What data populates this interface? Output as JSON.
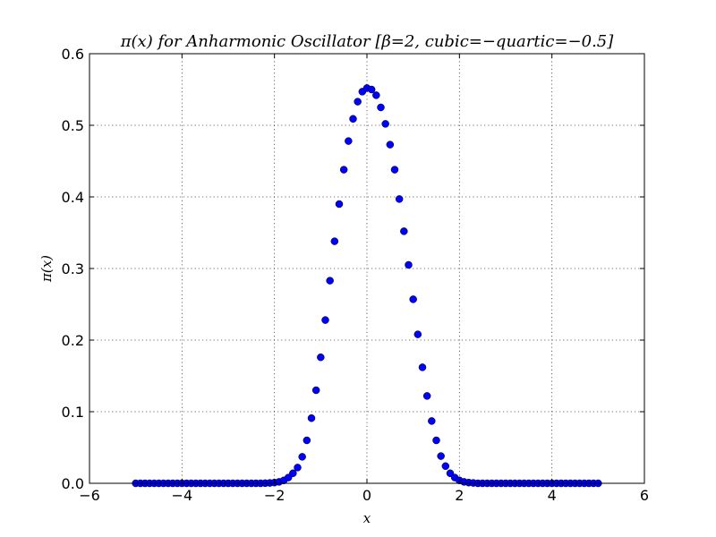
{
  "chart_data": {
    "type": "scatter",
    "title": "π(x) for Anharmonic Oscillator [β=2, cubic=−quartic=−0.5]",
    "xlabel": "x",
    "ylabel": "π(x)",
    "xlim": [
      -6,
      6
    ],
    "ylim": [
      0,
      0.6
    ],
    "xticks": [
      -6,
      -4,
      -2,
      0,
      2,
      4,
      6
    ],
    "xtick_labels": [
      "−6",
      "−4",
      "−2",
      "0",
      "2",
      "4",
      "6"
    ],
    "yticks": [
      0.0,
      0.1,
      0.2,
      0.3,
      0.4,
      0.5,
      0.6
    ],
    "ytick_labels": [
      "0.0",
      "0.1",
      "0.2",
      "0.3",
      "0.4",
      "0.5",
      "0.6"
    ],
    "grid": true,
    "marker_color": "#0000ff",
    "series": [
      {
        "x": [
          -5.0,
          -4.9,
          -4.8,
          -4.7,
          -4.6,
          -4.5,
          -4.4,
          -4.3,
          -4.2,
          -4.1,
          -4.0,
          -3.9,
          -3.8,
          -3.7,
          -3.6,
          -3.5,
          -3.4,
          -3.3,
          -3.2,
          -3.1,
          -3.0,
          -2.9,
          -2.8,
          -2.7,
          -2.6,
          -2.5,
          -2.4,
          -2.3,
          -2.2,
          -2.1,
          -2.0,
          -1.9,
          -1.8,
          -1.7,
          -1.6,
          -1.5,
          -1.4,
          -1.3,
          -1.2,
          -1.1,
          -1.0,
          -0.9,
          -0.8,
          -0.7,
          -0.6,
          -0.5,
          -0.4,
          -0.3,
          -0.2,
          -0.1,
          0.0,
          0.1,
          0.2,
          0.3,
          0.4,
          0.5,
          0.6,
          0.7,
          0.8,
          0.9,
          1.0,
          1.1,
          1.2,
          1.3,
          1.4,
          1.5,
          1.6,
          1.7,
          1.8,
          1.9,
          2.0,
          2.1,
          2.2,
          2.3,
          2.4,
          2.5,
          2.6,
          2.7,
          2.8,
          2.9,
          3.0,
          3.1,
          3.2,
          3.3,
          3.4,
          3.5,
          3.6,
          3.7,
          3.8,
          3.9,
          4.0,
          4.1,
          4.2,
          4.3,
          4.4,
          4.5,
          4.6,
          4.7,
          4.8,
          4.9,
          5.0
        ],
        "y": [
          0,
          0,
          0,
          0,
          0,
          0,
          0,
          0,
          0,
          0,
          0,
          0,
          0,
          0,
          0,
          0,
          0,
          0,
          0,
          0,
          0,
          0,
          0,
          0,
          0,
          0,
          0,
          0,
          0.0002,
          0.0005,
          0.001,
          0.002,
          0.004,
          0.008,
          0.014,
          0.022,
          0.037,
          0.06,
          0.091,
          0.13,
          0.176,
          0.228,
          0.283,
          0.338,
          0.39,
          0.438,
          0.478,
          0.509,
          0.533,
          0.547,
          0.552,
          0.55,
          0.542,
          0.525,
          0.502,
          0.473,
          0.438,
          0.397,
          0.352,
          0.305,
          0.257,
          0.208,
          0.162,
          0.122,
          0.087,
          0.06,
          0.038,
          0.024,
          0.014,
          0.008,
          0.004,
          0.002,
          0.001,
          0.0005,
          0,
          0,
          0,
          0,
          0,
          0,
          0,
          0,
          0,
          0,
          0,
          0,
          0,
          0,
          0,
          0,
          0,
          0,
          0,
          0,
          0,
          0,
          0,
          0,
          0,
          0,
          0
        ]
      }
    ]
  }
}
